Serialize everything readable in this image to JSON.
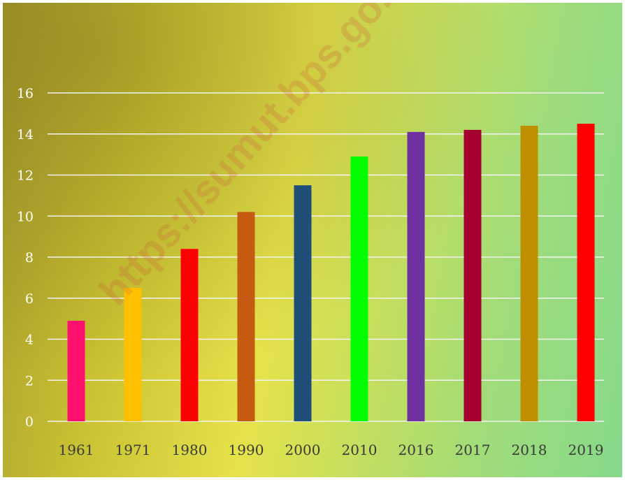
{
  "chart_data": {
    "type": "bar",
    "categories": [
      "1961",
      "1971",
      "1980",
      "1990",
      "2000",
      "2010",
      "2016",
      "2017",
      "2018",
      "2019"
    ],
    "values": [
      4.9,
      6.5,
      8.4,
      10.2,
      11.5,
      12.9,
      14.1,
      14.2,
      14.4,
      14.5
    ],
    "colors": [
      "#ff0f6e",
      "#ffc000",
      "#ff0000",
      "#c55a11",
      "#1f4e79",
      "#00ff00",
      "#7030a0",
      "#a5002d",
      "#bf8f00",
      "#ff0000"
    ],
    "yticks": [
      "0",
      "2",
      "4",
      "6",
      "8",
      "10",
      "12",
      "14",
      "16"
    ],
    "ylim": [
      0,
      16
    ],
    "grid": true,
    "title": "",
    "xlabel": "",
    "ylabel": ""
  },
  "watermark": "https://sumut.bps.go.id"
}
